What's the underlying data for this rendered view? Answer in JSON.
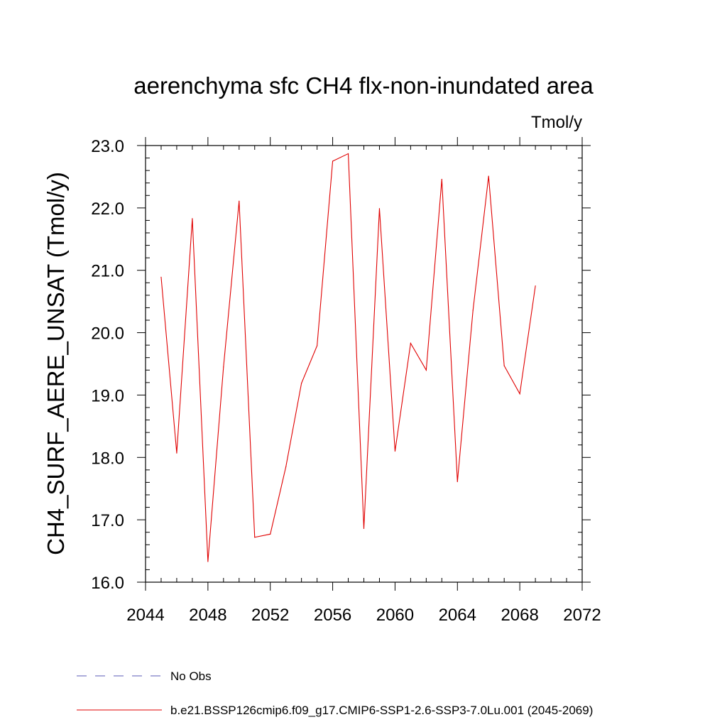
{
  "chart_data": {
    "type": "line",
    "title": "aerenchyma sfc CH4 flx-non-inundated area",
    "units_label": "Tmol/y",
    "xlabel": "",
    "ylabel": "CH4_SURF_AERE_UNSAT  (Tmol/y)",
    "xlim": [
      2044,
      2072
    ],
    "ylim": [
      16.0,
      23.0
    ],
    "x_ticks": [
      "2044",
      "2048",
      "2052",
      "2056",
      "2060",
      "2064",
      "2068",
      "2072"
    ],
    "y_ticks": [
      "16.0",
      "17.0",
      "18.0",
      "19.0",
      "20.0",
      "21.0",
      "22.0",
      "23.0"
    ],
    "grid": false,
    "legend_position": "bottom",
    "series": [
      {
        "name": "No Obs",
        "color": "#5a5ab4",
        "dash": "dashed",
        "x": [],
        "values": []
      },
      {
        "name": "b.e21.BSSP126cmip6.f09_g17.CMIP6-SSP1-2.6-SSP3-7.0Lu.001 (2045-2069)",
        "color": "#e00000",
        "dash": "solid",
        "x": [
          2045,
          2046,
          2047,
          2048,
          2049,
          2050,
          2051,
          2052,
          2053,
          2054,
          2055,
          2056,
          2057,
          2058,
          2059,
          2060,
          2061,
          2062,
          2063,
          2064,
          2065,
          2066,
          2067,
          2068,
          2069
        ],
        "values": [
          20.89,
          18.07,
          21.83,
          16.33,
          19.45,
          22.11,
          16.72,
          16.77,
          17.85,
          19.19,
          19.79,
          22.75,
          22.87,
          16.86,
          21.99,
          18.1,
          19.83,
          19.4,
          22.46,
          17.61,
          20.36,
          22.51,
          19.47,
          19.02,
          20.75
        ]
      }
    ]
  }
}
